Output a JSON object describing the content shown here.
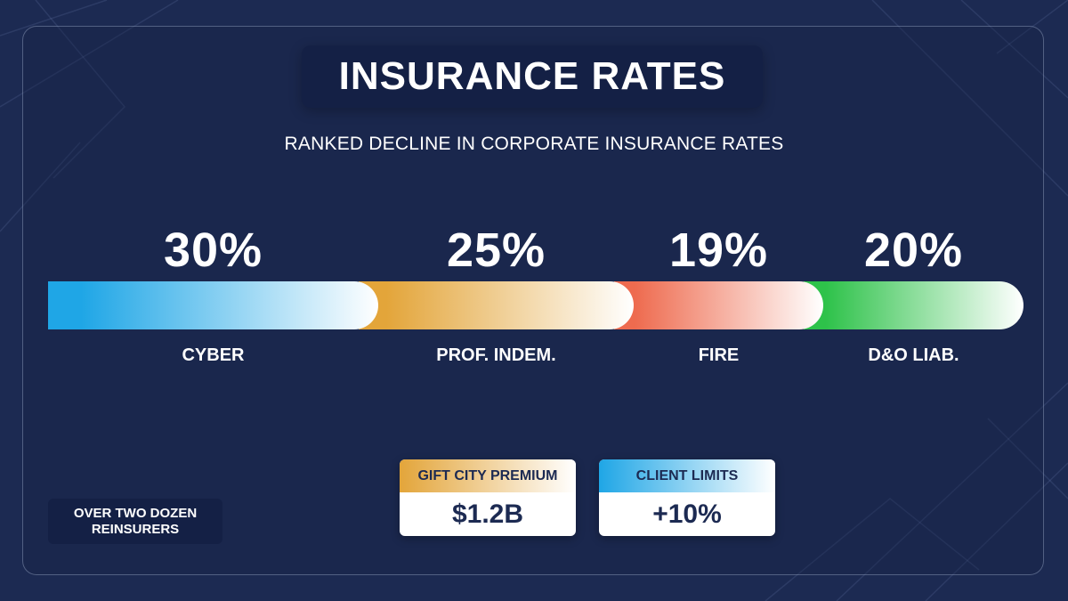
{
  "header": {
    "title": "INSURANCE RATES",
    "subtitle": "RANKED DECLINE IN CORPORATE INSURANCE RATES"
  },
  "chart_data": {
    "type": "bar",
    "title": "INSURANCE RATES",
    "subtitle": "RANKED DECLINE IN CORPORATE INSURANCE RATES",
    "categories": [
      "CYBER",
      "PROF. INDEM.",
      "FIRE",
      "D&O LIAB."
    ],
    "values": [
      30,
      25,
      19,
      20
    ],
    "value_labels": [
      "30%",
      "25%",
      "19%",
      "20%"
    ],
    "unit": "%",
    "orientation": "horizontal-segments",
    "legend": "none",
    "grid": false,
    "colors": [
      "#1fa6e6",
      "#e3a53a",
      "#ee6b4f",
      "#2ec24a"
    ]
  },
  "side_note": {
    "line1": "OVER TWO DOZEN",
    "line2": "REINSURERS"
  },
  "cards": [
    {
      "label": "GIFT CITY PREMIUM",
      "value": "$1.2B",
      "color": "#e3a53a"
    },
    {
      "label": "CLIENT LIMITS",
      "value": "+10%",
      "color": "#1fa6e6"
    }
  ]
}
